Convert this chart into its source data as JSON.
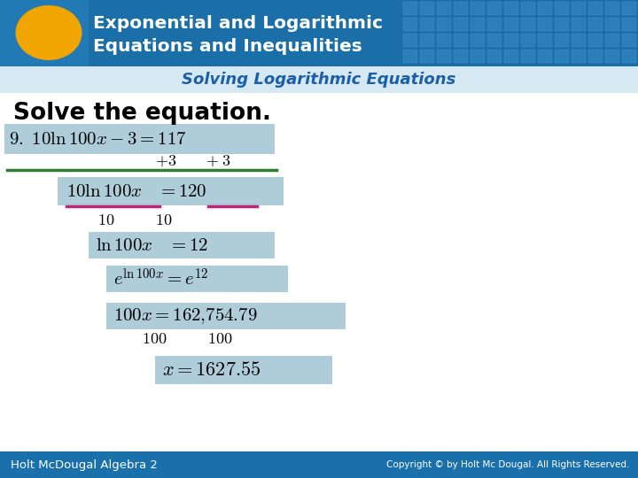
{
  "title_line1": "Exponential and Logarithmic",
  "title_line2": "Equations and Inequalities",
  "subtitle": "Solving Logarithmic Equations",
  "solve_text": "Solve the equation.",
  "footer_left": "Holt McDougal Algebra 2",
  "footer_right": "Copyright © by Holt Mc Dougal. All Rights Reserved.",
  "header_bg_color": "#1A6FA8",
  "header_text_color": "#FFFFFF",
  "subtitle_color": "#1B5FA8",
  "body_bg_color": "#FFFFFF",
  "ellipse_color": "#F0A500",
  "green_line_color": "#2E7D32",
  "pink_line_color": "#C0247A",
  "step_box_color": "#AECDD9",
  "footer_bg_color": "#1A70AA",
  "grid_color": "#3A8EC8"
}
